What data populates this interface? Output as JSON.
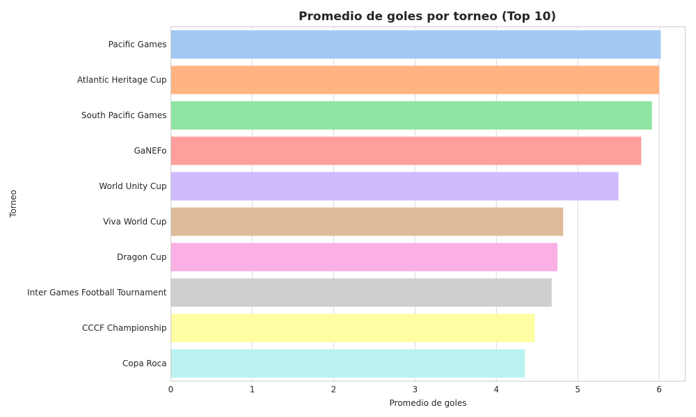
{
  "chart_data": {
    "type": "bar",
    "orientation": "horizontal",
    "title": "Promedio de goles por torneo (Top 10)",
    "xlabel": "Promedio de goles",
    "ylabel": "Torneo",
    "xlim": [
      0,
      6.32
    ],
    "xticks": [
      "0",
      "1",
      "2",
      "3",
      "4",
      "5",
      "6"
    ],
    "grid": "vertical",
    "categories": [
      "Pacific Games",
      "Atlantic Heritage Cup",
      "South Pacific Games",
      "GaNEFo",
      "World Unity Cup",
      "Viva World Cup",
      "Dragon Cup",
      "Inter Games Football Tournament",
      "CCCF Championship",
      "Copa Roca"
    ],
    "values": [
      6.02,
      6.0,
      5.91,
      5.78,
      5.5,
      4.82,
      4.75,
      4.68,
      4.47,
      4.35
    ],
    "colors": [
      "#a1c9f4",
      "#ffb482",
      "#8de5a1",
      "#ff9f9b",
      "#d0bbff",
      "#debb9b",
      "#fab0e4",
      "#cfcfcf",
      "#fffea3",
      "#b9f2f0"
    ]
  }
}
